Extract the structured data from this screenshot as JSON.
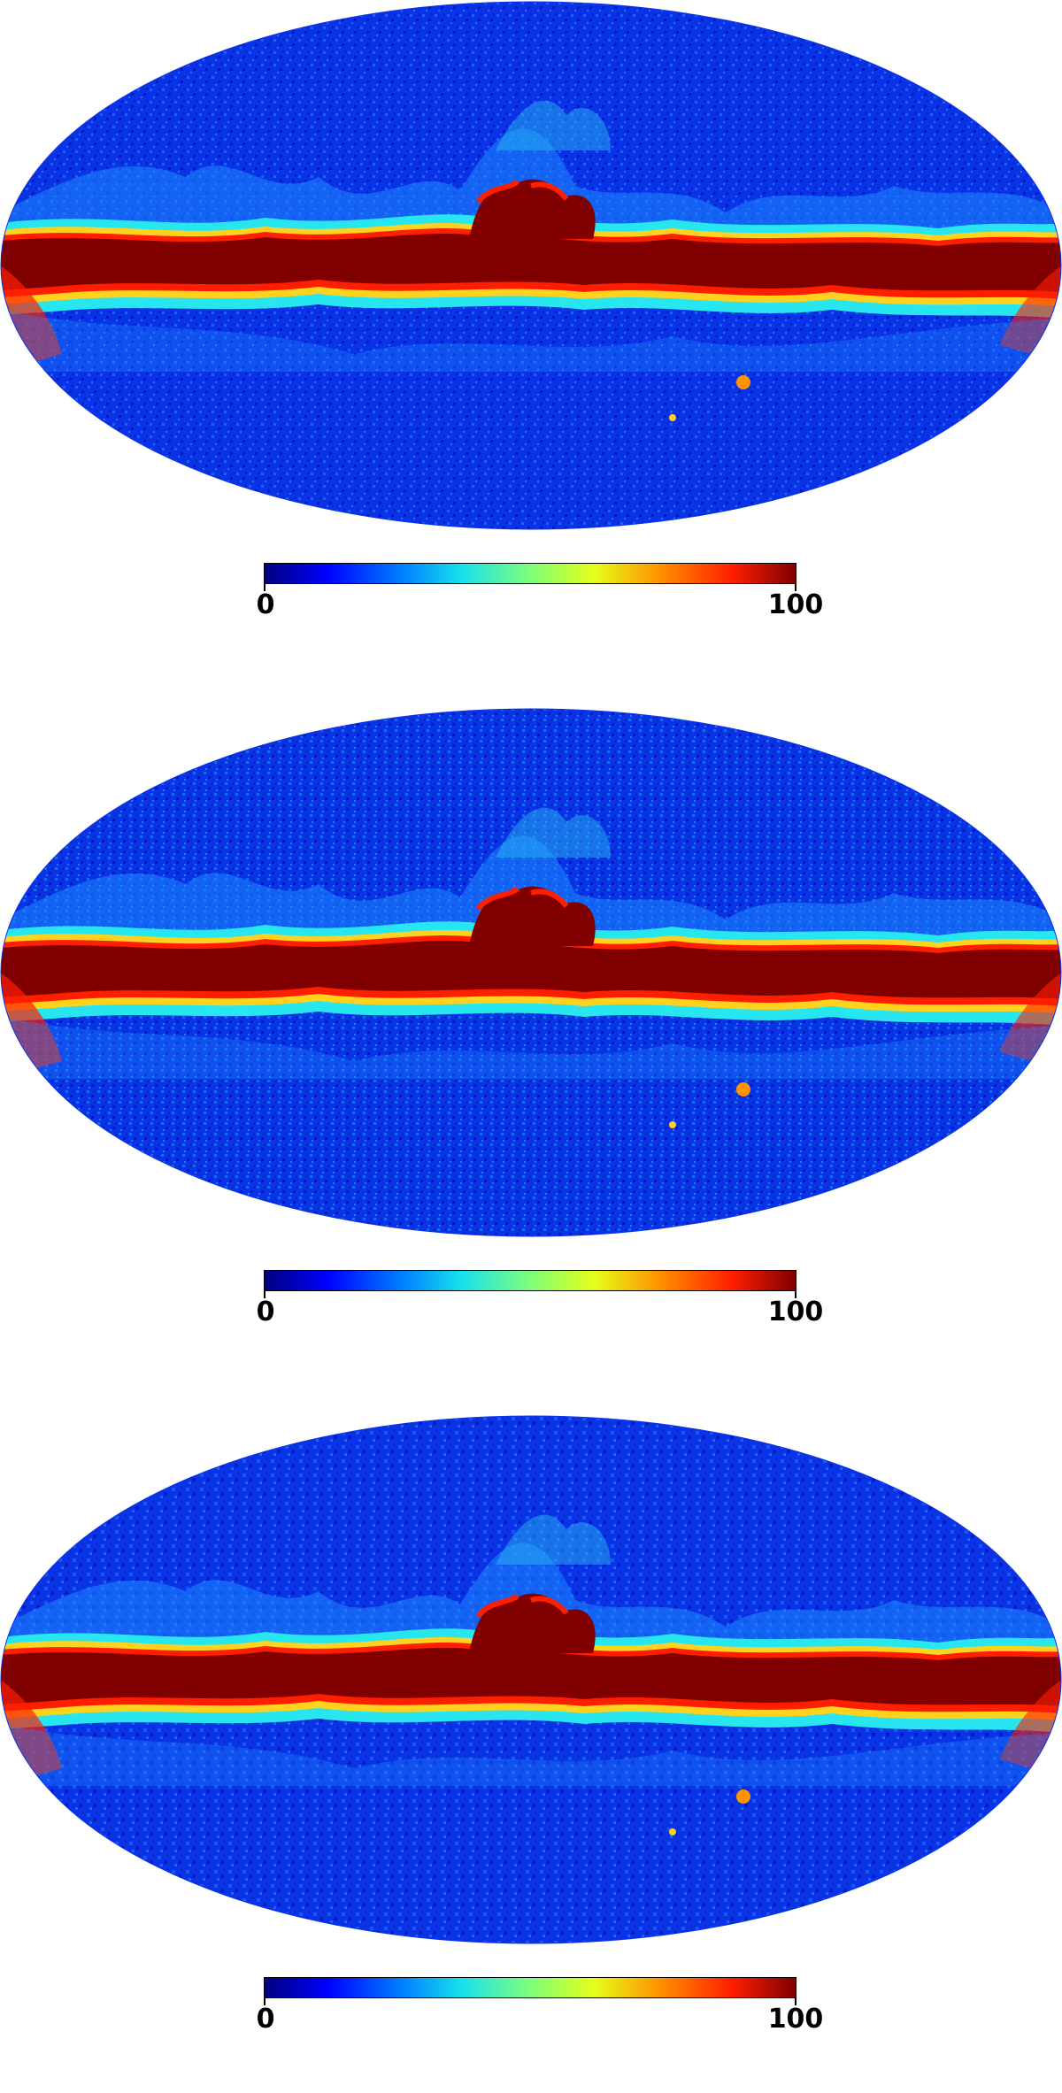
{
  "maps": [
    {
      "colorbar": {
        "min_label": "0",
        "max_label": "100"
      },
      "colormap": "jet"
    },
    {
      "colorbar": {
        "min_label": "0",
        "max_label": "100"
      },
      "colormap": "jet"
    },
    {
      "colorbar": {
        "min_label": "0",
        "max_label": "100"
      },
      "colormap": "jet"
    }
  ],
  "colors": {
    "background": "#0a32e6",
    "band": "#800000",
    "band_edge_red": "#ff1e00",
    "band_edge_yellow": "#ffd21e",
    "band_edge_cyan": "#28e6f0",
    "speckle_light": "#1e8cff",
    "speckle_dark": "#0010b4"
  }
}
